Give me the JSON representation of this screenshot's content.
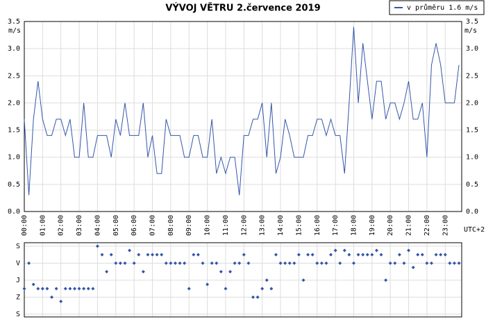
{
  "chart_data": [
    {
      "type": "line",
      "title": "VÝVOJ VĚTRU  2.července 2019",
      "y_label": "m/s",
      "x_note": "UTC+2",
      "grid": true,
      "legend": "upper right",
      "xlim": [
        0,
        23.9
      ],
      "xticks": [
        {
          "value": 0,
          "label": "00:00"
        },
        {
          "value": 1,
          "label": "01:00"
        },
        {
          "value": 2,
          "label": "02:00"
        },
        {
          "value": 3,
          "label": "03:00"
        },
        {
          "value": 4,
          "label": "04:00"
        },
        {
          "value": 5,
          "label": "05:00"
        },
        {
          "value": 6,
          "label": "06:00"
        },
        {
          "value": 7,
          "label": "07:00"
        },
        {
          "value": 8,
          "label": "08:00"
        },
        {
          "value": 9,
          "label": "09:00"
        },
        {
          "value": 10,
          "label": "10:00"
        },
        {
          "value": 11,
          "label": "11:00"
        },
        {
          "value": 12,
          "label": "12:00"
        },
        {
          "value": 13,
          "label": "13:00"
        },
        {
          "value": 14,
          "label": "14:00"
        },
        {
          "value": 15,
          "label": "15:00"
        },
        {
          "value": 16,
          "label": "16:00"
        },
        {
          "value": 17,
          "label": "17:00"
        },
        {
          "value": 18,
          "label": "18:00"
        },
        {
          "value": 19,
          "label": "19:00"
        },
        {
          "value": 20,
          "label": "20:00"
        },
        {
          "value": 21,
          "label": "21:00"
        },
        {
          "value": 22,
          "label": "22:00"
        },
        {
          "value": 23,
          "label": "23:00"
        }
      ],
      "ylim": [
        0,
        3.5
      ],
      "yticks": [
        {
          "value": 0,
          "label": "0.0"
        },
        0.5,
        {
          "value": 1,
          "label": "1.0"
        },
        1.5,
        {
          "value": 2,
          "label": "2.0"
        },
        2.5,
        {
          "value": 3,
          "label": "3.0"
        },
        3.5
      ],
      "x": [
        0,
        0.25,
        0.5,
        0.75,
        1,
        1.25,
        1.5,
        1.75,
        2,
        2.25,
        2.5,
        2.75,
        3,
        3.25,
        3.5,
        3.75,
        4,
        4.25,
        4.5,
        4.75,
        5,
        5.25,
        5.5,
        5.75,
        6,
        6.25,
        6.5,
        6.75,
        7,
        7.25,
        7.5,
        7.75,
        8,
        8.25,
        8.5,
        8.75,
        9,
        9.25,
        9.5,
        9.75,
        10,
        10.25,
        10.5,
        10.75,
        11,
        11.25,
        11.5,
        11.75,
        12,
        12.25,
        12.5,
        12.75,
        13,
        13.25,
        13.5,
        13.75,
        14,
        14.25,
        14.5,
        14.75,
        15,
        15.25,
        15.5,
        15.75,
        16,
        16.25,
        16.5,
        16.75,
        17,
        17.25,
        17.5,
        17.75,
        18,
        18.25,
        18.5,
        18.75,
        19,
        19.25,
        19.5,
        19.75,
        20,
        20.25,
        20.5,
        20.75,
        21,
        21.25,
        21.5,
        21.75,
        22,
        22.25,
        22.5,
        22.75,
        23,
        23.25,
        23.5,
        23.75
      ],
      "series": [
        {
          "name": "v průměru 1.6 m/s",
          "color": "#3355aa",
          "values": [
            1.7,
            0.3,
            1.7,
            2.4,
            1.7,
            1.4,
            1.4,
            1.7,
            1.7,
            1.4,
            1.7,
            1.0,
            1.0,
            2.0,
            1.0,
            1.0,
            1.4,
            1.4,
            1.4,
            1.0,
            1.7,
            1.4,
            2.0,
            1.4,
            1.4,
            1.4,
            2.0,
            1.0,
            1.4,
            0.7,
            0.7,
            1.7,
            1.4,
            1.4,
            1.4,
            1.0,
            1.0,
            1.4,
            1.4,
            1.0,
            1.0,
            1.7,
            0.7,
            1.0,
            0.7,
            1.0,
            1.0,
            0.3,
            1.4,
            1.4,
            1.7,
            1.7,
            2.0,
            1.0,
            2.0,
            0.7,
            1.0,
            1.7,
            1.4,
            1.0,
            1.0,
            1.0,
            1.4,
            1.4,
            1.7,
            1.7,
            1.4,
            1.7,
            1.4,
            1.4,
            0.7,
            2.0,
            3.4,
            2.0,
            3.1,
            2.4,
            1.7,
            2.4,
            2.4,
            1.7,
            2.0,
            2.0,
            1.7,
            2.0,
            2.4,
            1.7,
            1.7,
            2.0,
            1.0,
            2.7,
            3.1,
            2.7,
            2.0,
            2.0,
            2.0,
            2.7
          ]
        }
      ]
    },
    {
      "type": "scatter",
      "grid": true,
      "y_inverted": true,
      "xlim": [
        0,
        23.9
      ],
      "ylim": [
        0,
        360
      ],
      "yticks": [
        {
          "value": 0,
          "label": "S"
        },
        {
          "value": 90,
          "label": "V"
        },
        {
          "value": 180,
          "label": "J"
        },
        {
          "value": 270,
          "label": "Z"
        },
        {
          "value": 360,
          "label": "S"
        }
      ],
      "x": [
        0,
        0.25,
        0.5,
        0.75,
        1,
        1.25,
        1.5,
        1.75,
        2,
        2.25,
        2.5,
        2.75,
        3,
        3.25,
        3.5,
        3.75,
        4,
        4.25,
        4.5,
        4.75,
        5,
        5.25,
        5.5,
        5.75,
        6,
        6.25,
        6.5,
        6.75,
        7,
        7.25,
        7.5,
        7.75,
        8,
        8.25,
        8.5,
        8.75,
        9,
        9.25,
        9.5,
        9.75,
        10,
        10.25,
        10.5,
        10.75,
        11,
        11.25,
        11.5,
        11.75,
        12,
        12.25,
        12.5,
        12.75,
        13,
        13.25,
        13.5,
        13.75,
        14,
        14.25,
        14.5,
        14.75,
        15,
        15.25,
        15.5,
        15.75,
        16,
        16.25,
        16.5,
        16.75,
        17,
        17.25,
        17.5,
        17.75,
        18,
        18.25,
        18.5,
        18.75,
        19,
        19.25,
        19.5,
        19.75,
        20,
        20.25,
        20.5,
        20.75,
        21,
        21.25,
        21.5,
        21.75,
        22,
        22.25,
        22.5,
        22.75,
        23,
        23.25,
        23.5,
        23.75
      ],
      "color": "#3355aa",
      "values": [
        225,
        90,
        202.5,
        225,
        225,
        225,
        270,
        225,
        292.5,
        225,
        225,
        225,
        225,
        225,
        225,
        225,
        0,
        45,
        135,
        45,
        90,
        90,
        90,
        22.5,
        90,
        45,
        135,
        45,
        45,
        45,
        45,
        90,
        90,
        90,
        90,
        90,
        225,
        45,
        45,
        90,
        202.5,
        90,
        90,
        135,
        225,
        135,
        90,
        90,
        45,
        90,
        270,
        270,
        225,
        180,
        225,
        45,
        90,
        90,
        90,
        90,
        45,
        180,
        45,
        45,
        90,
        90,
        90,
        45,
        22.5,
        90,
        22.5,
        45,
        90,
        45,
        45,
        45,
        45,
        22.5,
        45,
        180,
        90,
        90,
        45,
        90,
        22.5,
        112.5,
        45,
        45,
        90,
        90,
        45,
        45,
        45,
        90,
        90,
        90
      ]
    }
  ]
}
